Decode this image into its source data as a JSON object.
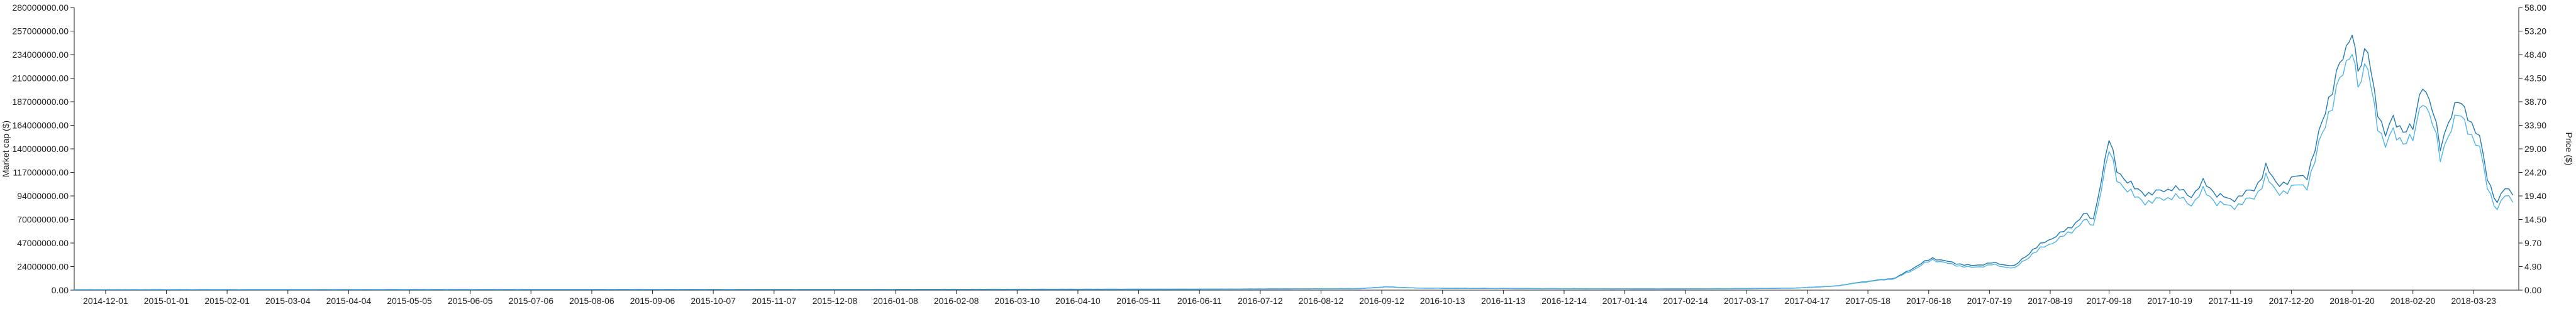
{
  "chart_data": {
    "type": "line",
    "title": "",
    "xlabel": "",
    "ylabel_left": "Market cap ($)",
    "ylabel_right": "Price ($)",
    "grid": false,
    "legend": "none",
    "colors": {
      "marketcap": "#1f77b4",
      "price": "#4fb3e8",
      "axis": "#222222"
    },
    "x_ticks": [
      "2014-12-01",
      "2015-01-01",
      "2015-02-01",
      "2015-03-04",
      "2015-04-04",
      "2015-05-05",
      "2015-06-05",
      "2015-07-06",
      "2015-08-06",
      "2015-09-06",
      "2015-10-07",
      "2015-11-07",
      "2015-12-08",
      "2016-01-08",
      "2016-02-08",
      "2016-03-10",
      "2016-04-10",
      "2016-05-11",
      "2016-06-11",
      "2016-07-12",
      "2016-08-12",
      "2016-09-12",
      "2016-10-13",
      "2016-11-13",
      "2016-12-14",
      "2017-01-14",
      "2017-02-14",
      "2017-03-17",
      "2017-04-17",
      "2017-05-18",
      "2017-06-18",
      "2017-07-19",
      "2017-08-19",
      "2017-09-18",
      "2017-10-19",
      "2017-11-19",
      "2017-12-20",
      "2018-01-20",
      "2018-02-20",
      "2018-03-23"
    ],
    "y_left_ticks": [
      "0.00",
      "24000000.00",
      "47000000.00",
      "70000000.00",
      "94000000.00",
      "117000000.00",
      "140000000.00",
      "164000000.00",
      "187000000.00",
      "210000000.00",
      "234000000.00",
      "257000000.00",
      "280000000.00"
    ],
    "y_right_ticks": [
      "0.00",
      "4.90",
      "9.70",
      "14.50",
      "19.40",
      "24.20",
      "29.00",
      "33.90",
      "38.70",
      "43.50",
      "48.40",
      "53.20",
      "58.00"
    ],
    "y_left_range": [
      0,
      280000000
    ],
    "y_right_range": [
      0,
      58
    ],
    "x_range": [
      "2014-11-15",
      "2018-04-15"
    ],
    "series": [
      {
        "key": "marketcap",
        "axis": "left",
        "points": [
          [
            "2014-11-15",
            500000
          ],
          [
            "2015-06-01",
            600000
          ],
          [
            "2016-01-01",
            700000
          ],
          [
            "2016-06-01",
            900000
          ],
          [
            "2016-09-01",
            1500000
          ],
          [
            "2016-09-14",
            3200000
          ],
          [
            "2016-10-01",
            2000000
          ],
          [
            "2016-12-01",
            1500000
          ],
          [
            "2017-02-01",
            1200000
          ],
          [
            "2017-03-15",
            1500000
          ],
          [
            "2017-04-10",
            2000000
          ],
          [
            "2017-05-01",
            4000000
          ],
          [
            "2017-05-15",
            8000000
          ],
          [
            "2017-06-01",
            12000000
          ],
          [
            "2017-06-12",
            24000000
          ],
          [
            "2017-06-20",
            32000000
          ],
          [
            "2017-06-28",
            28000000
          ],
          [
            "2017-07-10",
            24000000
          ],
          [
            "2017-07-20",
            27000000
          ],
          [
            "2017-08-01",
            24000000
          ],
          [
            "2017-08-10",
            40000000
          ],
          [
            "2017-08-20",
            52000000
          ],
          [
            "2017-08-28",
            60000000
          ],
          [
            "2017-09-05",
            75000000
          ],
          [
            "2017-09-10",
            70000000
          ],
          [
            "2017-09-14",
            110000000
          ],
          [
            "2017-09-18",
            148000000
          ],
          [
            "2017-09-22",
            120000000
          ],
          [
            "2017-10-01",
            100000000
          ],
          [
            "2017-10-10",
            95000000
          ],
          [
            "2017-10-20",
            102000000
          ],
          [
            "2017-10-30",
            94000000
          ],
          [
            "2017-11-05",
            106000000
          ],
          [
            "2017-11-12",
            96000000
          ],
          [
            "2017-11-19",
            88000000
          ],
          [
            "2017-11-25",
            96000000
          ],
          [
            "2017-12-01",
            98000000
          ],
          [
            "2017-12-07",
            124000000
          ],
          [
            "2017-12-12",
            104000000
          ],
          [
            "2017-12-20",
            110000000
          ],
          [
            "2017-12-28",
            114000000
          ],
          [
            "2018-01-03",
            152000000
          ],
          [
            "2018-01-08",
            190000000
          ],
          [
            "2018-01-12",
            215000000
          ],
          [
            "2018-01-17",
            234000000
          ],
          [
            "2018-01-20",
            262000000
          ],
          [
            "2018-01-23",
            220000000
          ],
          [
            "2018-01-28",
            234000000
          ],
          [
            "2018-02-02",
            180000000
          ],
          [
            "2018-02-06",
            152000000
          ],
          [
            "2018-02-10",
            170000000
          ],
          [
            "2018-02-15",
            160000000
          ],
          [
            "2018-02-20",
            158000000
          ],
          [
            "2018-02-25",
            208000000
          ],
          [
            "2018-03-02",
            178000000
          ],
          [
            "2018-03-06",
            140000000
          ],
          [
            "2018-03-10",
            170000000
          ],
          [
            "2018-03-15",
            185000000
          ],
          [
            "2018-03-20",
            175000000
          ],
          [
            "2018-03-26",
            150000000
          ],
          [
            "2018-03-30",
            110000000
          ],
          [
            "2018-04-04",
            88000000
          ],
          [
            "2018-04-08",
            100000000
          ],
          [
            "2018-04-12",
            94000000
          ]
        ]
      },
      {
        "key": "price",
        "axis": "right",
        "points": [
          [
            "2014-11-15",
            0.12
          ],
          [
            "2015-06-01",
            0.14
          ],
          [
            "2016-01-01",
            0.16
          ],
          [
            "2016-06-01",
            0.2
          ],
          [
            "2016-09-01",
            0.32
          ],
          [
            "2016-09-14",
            0.7
          ],
          [
            "2016-10-01",
            0.42
          ],
          [
            "2016-12-01",
            0.32
          ],
          [
            "2017-02-01",
            0.26
          ],
          [
            "2017-03-15",
            0.32
          ],
          [
            "2017-04-10",
            0.42
          ],
          [
            "2017-05-01",
            0.8
          ],
          [
            "2017-05-15",
            1.6
          ],
          [
            "2017-06-01",
            2.4
          ],
          [
            "2017-06-12",
            4.6
          ],
          [
            "2017-06-20",
            6.3
          ],
          [
            "2017-06-28",
            5.4
          ],
          [
            "2017-07-10",
            4.6
          ],
          [
            "2017-07-20",
            5.2
          ],
          [
            "2017-08-01",
            4.5
          ],
          [
            "2017-08-10",
            7.5
          ],
          [
            "2017-08-20",
            9.8
          ],
          [
            "2017-08-28",
            11.5
          ],
          [
            "2017-09-05",
            14.2
          ],
          [
            "2017-09-10",
            13.2
          ],
          [
            "2017-09-14",
            21.0
          ],
          [
            "2017-09-18",
            28.4
          ],
          [
            "2017-09-22",
            23.0
          ],
          [
            "2017-10-01",
            19.0
          ],
          [
            "2017-10-10",
            18.0
          ],
          [
            "2017-10-20",
            19.4
          ],
          [
            "2017-10-30",
            17.8
          ],
          [
            "2017-11-05",
            20.2
          ],
          [
            "2017-11-12",
            18.2
          ],
          [
            "2017-11-19",
            16.8
          ],
          [
            "2017-11-25",
            18.2
          ],
          [
            "2017-12-01",
            18.6
          ],
          [
            "2017-12-07",
            23.6
          ],
          [
            "2017-12-12",
            19.8
          ],
          [
            "2017-12-20",
            21.0
          ],
          [
            "2017-12-28",
            21.6
          ],
          [
            "2018-01-03",
            29.2
          ],
          [
            "2018-01-08",
            36.4
          ],
          [
            "2018-01-12",
            41.4
          ],
          [
            "2018-01-17",
            45.2
          ],
          [
            "2018-01-20",
            50.6
          ],
          [
            "2018-01-23",
            42.4
          ],
          [
            "2018-01-28",
            45.0
          ],
          [
            "2018-02-02",
            34.6
          ],
          [
            "2018-02-06",
            29.2
          ],
          [
            "2018-02-10",
            32.6
          ],
          [
            "2018-02-15",
            30.8
          ],
          [
            "2018-02-20",
            30.4
          ],
          [
            "2018-02-25",
            40.0
          ],
          [
            "2018-03-02",
            34.2
          ],
          [
            "2018-03-06",
            26.8
          ],
          [
            "2018-03-10",
            32.6
          ],
          [
            "2018-03-15",
            35.6
          ],
          [
            "2018-03-20",
            33.6
          ],
          [
            "2018-03-26",
            28.8
          ],
          [
            "2018-03-30",
            21.0
          ],
          [
            "2018-04-04",
            16.8
          ],
          [
            "2018-04-08",
            19.2
          ],
          [
            "2018-04-12",
            18.0
          ]
        ]
      }
    ]
  }
}
